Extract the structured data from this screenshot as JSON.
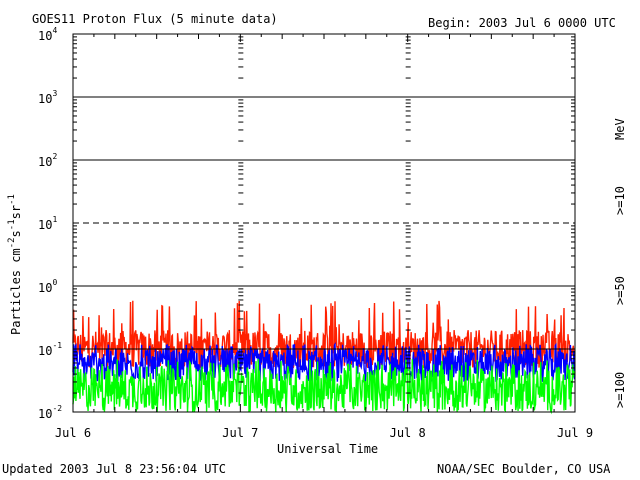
{
  "header": {
    "title": "GOES11 Proton Flux (5 minute data)",
    "begin": "Begin: 2003 Jul 6 0000 UTC"
  },
  "footer": {
    "updated": "Updated 2003 Jul  8 23:56:04 UTC",
    "credit": "NOAA/SEC Boulder, CO USA"
  },
  "chart_data": {
    "type": "line",
    "title": "GOES11 Proton Flux (5 minute data)",
    "xlabel": "Universal Time",
    "ylabel": "Particles cm-2s-1sr-1",
    "yscale": "log",
    "ylim": [
      0.01,
      10000
    ],
    "ytick_labels": [
      "10^-2",
      "10^-1",
      "10^0",
      "10^1",
      "10^2",
      "10^3",
      "10^4"
    ],
    "x_tick_labels": [
      "Jul 6",
      "Jul 7",
      "Jul 8",
      "Jul 9"
    ],
    "xlim": [
      "2003-07-06T00:00",
      "2003-07-09T00:00"
    ],
    "grid": "horizontal lines at each decade; dashed at 10^1",
    "threshold_line": 0.1,
    "right_label_unit": "MeV",
    "series": [
      {
        "name": ">=10",
        "color": "#ff2000",
        "typical_range": [
          0.05,
          0.2
        ],
        "peak": 0.6
      },
      {
        "name": ">=50",
        "color": "#0000ff",
        "typical_range": [
          0.03,
          0.1
        ],
        "peak": 0.12
      },
      {
        "name": ">=100",
        "color": "#00ff00",
        "typical_range": [
          0.01,
          0.05
        ],
        "peak": 0.07
      }
    ]
  }
}
